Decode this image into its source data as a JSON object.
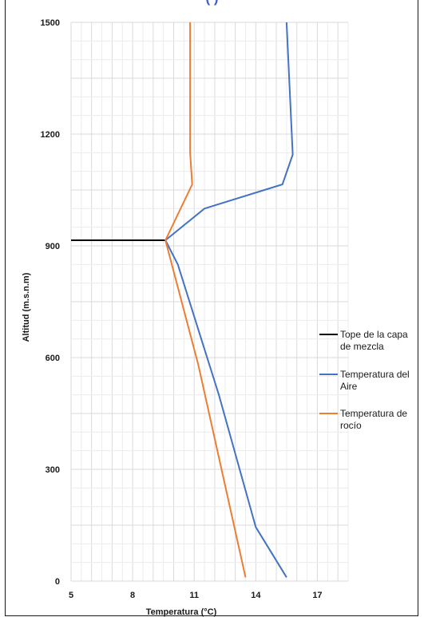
{
  "chart_data": {
    "type": "line",
    "title": "",
    "title_fragment": "(                    )",
    "xlabel": "Temperatura (°C)",
    "ylabel": "Altitud (m.s.n.m)",
    "xlim": [
      5,
      18.5
    ],
    "ylim": [
      0,
      1500
    ],
    "x_ticks": [
      5,
      8,
      11,
      14,
      17
    ],
    "y_ticks": [
      0,
      300,
      600,
      900,
      1200,
      1500
    ],
    "grid": true,
    "legend_position": "right",
    "series": [
      {
        "name_lines": [
          "Tope de la capa",
          "de mezcla"
        ],
        "color": "#000000",
        "points": [
          [
            5,
            915
          ],
          [
            9.6,
            915
          ]
        ]
      },
      {
        "name_lines": [
          "Temperatura del",
          "Aire"
        ],
        "color": "#4472c4",
        "points": [
          [
            15.5,
            10
          ],
          [
            14,
            145
          ],
          [
            12.2,
            500
          ],
          [
            10.2,
            850
          ],
          [
            9.6,
            915
          ],
          [
            11.5,
            1000
          ],
          [
            15.3,
            1065
          ],
          [
            15.8,
            1145
          ],
          [
            15.5,
            1500
          ]
        ]
      },
      {
        "name_lines": [
          "Temperatura  de",
          "rocío"
        ],
        "color": "#ed7d31",
        "points": [
          [
            13.5,
            10
          ],
          [
            11.2,
            580
          ],
          [
            9.6,
            915
          ],
          [
            10.9,
            1065
          ],
          [
            10.8,
            1150
          ],
          [
            10.8,
            1500
          ]
        ]
      }
    ]
  }
}
